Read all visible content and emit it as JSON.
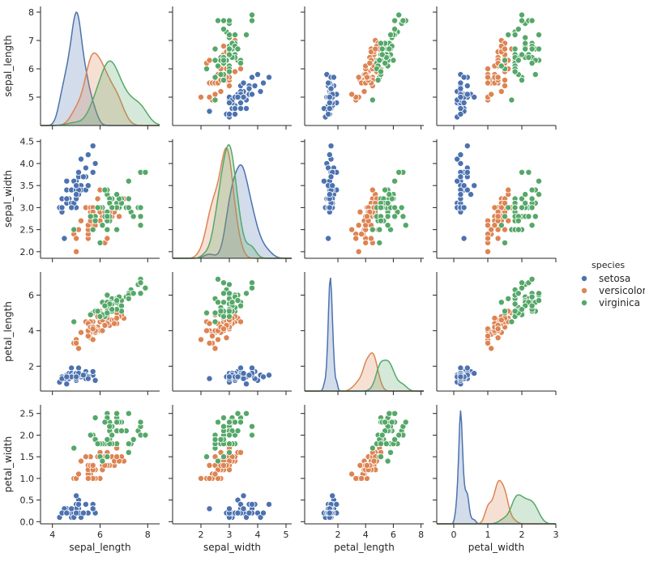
{
  "chart_data": {
    "type": "scatter",
    "variables": [
      "sepal_length",
      "sepal_width",
      "petal_length",
      "petal_width"
    ],
    "hue": "species",
    "legend": {
      "title": "species",
      "position": "right",
      "entries": [
        "setosa",
        "versicolor",
        "virginica"
      ]
    },
    "colors": {
      "setosa": "#4c72b0",
      "versicolor": "#dd8452",
      "virginica": "#55a868"
    },
    "grid": false,
    "axes": {
      "sepal_length": {
        "label": "sepal_length",
        "lim": [
          3.5,
          8.5
        ],
        "ylim": [
          4.0,
          8.2
        ],
        "xticks": [
          4,
          6,
          8
        ],
        "yticks": [
          5,
          6,
          7,
          8
        ]
      },
      "sepal_width": {
        "label": "sepal_width",
        "lim": [
          1.0,
          5.2
        ],
        "ylim": [
          1.85,
          4.55
        ],
        "xticks": [
          2,
          3,
          4,
          5
        ],
        "yticks": [
          2.0,
          2.5,
          3.0,
          3.5,
          4.0,
          4.5
        ]
      },
      "petal_length": {
        "label": "petal_length",
        "lim": [
          -0.4,
          8.2
        ],
        "ylim": [
          0.6,
          7.3
        ],
        "xticks": [
          2,
          4,
          6,
          8
        ],
        "yticks": [
          2,
          4,
          6
        ]
      },
      "petal_width": {
        "label": "petal_width",
        "lim": [
          -0.5,
          3.0
        ],
        "ylim": [
          -0.05,
          2.7
        ],
        "xticks": [
          0,
          1,
          2,
          3
        ],
        "yticks": [
          0.0,
          0.5,
          1.0,
          1.5,
          2.0,
          2.5
        ]
      }
    },
    "series": [
      {
        "name": "setosa",
        "values": [
          [
            5.1,
            3.5,
            1.4,
            0.2
          ],
          [
            4.9,
            3.0,
            1.4,
            0.2
          ],
          [
            4.7,
            3.2,
            1.3,
            0.2
          ],
          [
            4.6,
            3.1,
            1.5,
            0.2
          ],
          [
            5.0,
            3.6,
            1.4,
            0.2
          ],
          [
            5.4,
            3.9,
            1.7,
            0.4
          ],
          [
            4.6,
            3.4,
            1.4,
            0.3
          ],
          [
            5.0,
            3.4,
            1.5,
            0.2
          ],
          [
            4.4,
            2.9,
            1.4,
            0.2
          ],
          [
            4.9,
            3.1,
            1.5,
            0.1
          ],
          [
            5.4,
            3.7,
            1.5,
            0.2
          ],
          [
            4.8,
            3.4,
            1.6,
            0.2
          ],
          [
            4.8,
            3.0,
            1.4,
            0.1
          ],
          [
            4.3,
            3.0,
            1.1,
            0.1
          ],
          [
            5.8,
            4.0,
            1.2,
            0.2
          ],
          [
            5.7,
            4.4,
            1.5,
            0.4
          ],
          [
            5.4,
            3.9,
            1.3,
            0.4
          ],
          [
            5.1,
            3.5,
            1.4,
            0.3
          ],
          [
            5.7,
            3.8,
            1.7,
            0.3
          ],
          [
            5.1,
            3.8,
            1.5,
            0.3
          ],
          [
            5.4,
            3.4,
            1.7,
            0.2
          ],
          [
            5.1,
            3.7,
            1.5,
            0.4
          ],
          [
            4.6,
            3.6,
            1.0,
            0.2
          ],
          [
            5.1,
            3.3,
            1.7,
            0.5
          ],
          [
            4.8,
            3.4,
            1.9,
            0.2
          ],
          [
            5.0,
            3.0,
            1.6,
            0.2
          ],
          [
            5.0,
            3.4,
            1.6,
            0.4
          ],
          [
            5.2,
            3.5,
            1.5,
            0.2
          ],
          [
            5.2,
            3.4,
            1.4,
            0.2
          ],
          [
            4.7,
            3.2,
            1.6,
            0.2
          ],
          [
            4.8,
            3.1,
            1.6,
            0.2
          ],
          [
            5.4,
            3.4,
            1.5,
            0.4
          ],
          [
            5.2,
            4.1,
            1.5,
            0.1
          ],
          [
            5.5,
            4.2,
            1.4,
            0.2
          ],
          [
            4.9,
            3.1,
            1.5,
            0.2
          ],
          [
            5.0,
            3.2,
            1.2,
            0.2
          ],
          [
            5.5,
            3.5,
            1.3,
            0.2
          ],
          [
            4.9,
            3.6,
            1.4,
            0.1
          ],
          [
            4.4,
            3.0,
            1.3,
            0.2
          ],
          [
            5.1,
            3.4,
            1.5,
            0.2
          ],
          [
            5.0,
            3.5,
            1.3,
            0.3
          ],
          [
            4.5,
            2.3,
            1.3,
            0.3
          ],
          [
            4.4,
            3.2,
            1.3,
            0.2
          ],
          [
            5.0,
            3.5,
            1.6,
            0.6
          ],
          [
            5.1,
            3.8,
            1.9,
            0.4
          ],
          [
            4.8,
            3.0,
            1.4,
            0.3
          ],
          [
            5.1,
            3.8,
            1.6,
            0.2
          ],
          [
            4.6,
            3.2,
            1.4,
            0.2
          ],
          [
            5.3,
            3.7,
            1.5,
            0.2
          ],
          [
            5.0,
            3.3,
            1.4,
            0.2
          ]
        ]
      },
      {
        "name": "versicolor",
        "values": [
          [
            7.0,
            3.2,
            4.7,
            1.4
          ],
          [
            6.4,
            3.2,
            4.5,
            1.5
          ],
          [
            6.9,
            3.1,
            4.9,
            1.5
          ],
          [
            5.5,
            2.3,
            4.0,
            1.3
          ],
          [
            6.5,
            2.8,
            4.6,
            1.5
          ],
          [
            5.7,
            2.8,
            4.5,
            1.3
          ],
          [
            6.3,
            3.3,
            4.7,
            1.6
          ],
          [
            4.9,
            2.4,
            3.3,
            1.0
          ],
          [
            6.6,
            2.9,
            4.6,
            1.3
          ],
          [
            5.2,
            2.7,
            3.9,
            1.4
          ],
          [
            5.0,
            2.0,
            3.5,
            1.0
          ],
          [
            5.9,
            3.0,
            4.2,
            1.5
          ],
          [
            6.0,
            2.2,
            4.0,
            1.0
          ],
          [
            6.1,
            2.9,
            4.7,
            1.4
          ],
          [
            5.6,
            2.9,
            3.6,
            1.3
          ],
          [
            6.7,
            3.1,
            4.4,
            1.4
          ],
          [
            5.6,
            3.0,
            4.5,
            1.5
          ],
          [
            5.8,
            2.7,
            4.1,
            1.0
          ],
          [
            6.2,
            2.2,
            4.5,
            1.5
          ],
          [
            5.6,
            2.5,
            3.9,
            1.1
          ],
          [
            5.9,
            3.2,
            4.8,
            1.8
          ],
          [
            6.1,
            2.8,
            4.0,
            1.3
          ],
          [
            6.3,
            2.5,
            4.9,
            1.5
          ],
          [
            6.1,
            2.8,
            4.7,
            1.2
          ],
          [
            6.4,
            2.9,
            4.3,
            1.3
          ],
          [
            6.6,
            3.0,
            4.4,
            1.4
          ],
          [
            6.8,
            2.8,
            4.8,
            1.4
          ],
          [
            6.7,
            3.0,
            5.0,
            1.7
          ],
          [
            6.0,
            2.9,
            4.5,
            1.5
          ],
          [
            5.7,
            2.6,
            3.5,
            1.0
          ],
          [
            5.5,
            2.4,
            3.8,
            1.1
          ],
          [
            5.5,
            2.4,
            3.7,
            1.0
          ],
          [
            5.8,
            2.7,
            3.9,
            1.2
          ],
          [
            6.0,
            2.7,
            5.1,
            1.6
          ],
          [
            5.4,
            3.0,
            4.5,
            1.5
          ],
          [
            6.0,
            3.4,
            4.5,
            1.6
          ],
          [
            6.7,
            3.1,
            4.7,
            1.5
          ],
          [
            6.3,
            2.3,
            4.4,
            1.3
          ],
          [
            5.6,
            3.0,
            4.1,
            1.3
          ],
          [
            5.5,
            2.5,
            4.0,
            1.3
          ],
          [
            5.5,
            2.6,
            4.4,
            1.2
          ],
          [
            6.1,
            3.0,
            4.6,
            1.4
          ],
          [
            5.8,
            2.6,
            4.0,
            1.2
          ],
          [
            5.0,
            2.3,
            3.3,
            1.0
          ],
          [
            5.6,
            2.7,
            4.2,
            1.3
          ],
          [
            5.7,
            3.0,
            4.2,
            1.2
          ],
          [
            5.7,
            2.9,
            4.2,
            1.3
          ],
          [
            6.2,
            2.9,
            4.3,
            1.3
          ],
          [
            5.1,
            2.5,
            3.0,
            1.1
          ],
          [
            5.7,
            2.8,
            4.1,
            1.3
          ]
        ]
      },
      {
        "name": "virginica",
        "values": [
          [
            6.3,
            3.3,
            6.0,
            2.5
          ],
          [
            5.8,
            2.7,
            5.1,
            1.9
          ],
          [
            7.1,
            3.0,
            5.9,
            2.1
          ],
          [
            6.3,
            2.9,
            5.6,
            1.8
          ],
          [
            6.5,
            3.0,
            5.8,
            2.2
          ],
          [
            7.6,
            3.0,
            6.6,
            2.1
          ],
          [
            4.9,
            2.5,
            4.5,
            1.7
          ],
          [
            7.3,
            2.9,
            6.3,
            1.8
          ],
          [
            6.7,
            2.5,
            5.8,
            1.8
          ],
          [
            7.2,
            3.6,
            6.1,
            2.5
          ],
          [
            6.5,
            3.2,
            5.1,
            2.0
          ],
          [
            6.4,
            2.7,
            5.3,
            1.9
          ],
          [
            6.8,
            3.0,
            5.5,
            2.1
          ],
          [
            5.7,
            2.5,
            5.0,
            2.0
          ],
          [
            5.8,
            2.8,
            5.1,
            2.4
          ],
          [
            6.4,
            3.2,
            5.3,
            2.3
          ],
          [
            6.5,
            3.0,
            5.5,
            1.8
          ],
          [
            7.7,
            3.8,
            6.7,
            2.2
          ],
          [
            7.7,
            2.6,
            6.9,
            2.3
          ],
          [
            6.0,
            2.2,
            5.0,
            1.5
          ],
          [
            6.9,
            3.2,
            5.7,
            2.3
          ],
          [
            5.6,
            2.8,
            4.9,
            2.0
          ],
          [
            7.7,
            2.8,
            6.7,
            2.0
          ],
          [
            6.3,
            2.7,
            4.9,
            1.8
          ],
          [
            6.7,
            3.3,
            5.7,
            2.1
          ],
          [
            7.2,
            3.2,
            6.0,
            1.8
          ],
          [
            6.2,
            2.8,
            4.8,
            1.8
          ],
          [
            6.1,
            3.0,
            4.9,
            1.8
          ],
          [
            6.4,
            2.8,
            5.6,
            2.1
          ],
          [
            7.2,
            3.0,
            5.8,
            1.6
          ],
          [
            7.4,
            2.8,
            6.1,
            1.9
          ],
          [
            7.9,
            3.8,
            6.4,
            2.0
          ],
          [
            6.4,
            2.8,
            5.6,
            2.2
          ],
          [
            6.3,
            2.8,
            5.1,
            1.5
          ],
          [
            6.1,
            2.6,
            5.6,
            1.4
          ],
          [
            7.7,
            3.0,
            6.1,
            2.3
          ],
          [
            6.3,
            3.4,
            5.6,
            2.4
          ],
          [
            6.4,
            3.1,
            5.5,
            1.8
          ],
          [
            6.0,
            3.0,
            4.8,
            1.8
          ],
          [
            6.9,
            3.1,
            5.4,
            2.1
          ],
          [
            6.7,
            3.1,
            5.6,
            2.4
          ],
          [
            6.9,
            3.1,
            5.1,
            2.3
          ],
          [
            5.8,
            2.7,
            5.1,
            1.9
          ],
          [
            6.8,
            3.2,
            5.9,
            2.3
          ],
          [
            6.7,
            3.3,
            5.7,
            2.5
          ],
          [
            6.7,
            3.0,
            5.2,
            2.3
          ],
          [
            6.3,
            2.5,
            5.0,
            1.9
          ],
          [
            6.5,
            3.0,
            5.2,
            2.0
          ],
          [
            6.2,
            3.4,
            5.4,
            2.3
          ],
          [
            5.9,
            3.0,
            5.1,
            1.8
          ]
        ]
      }
    ]
  }
}
